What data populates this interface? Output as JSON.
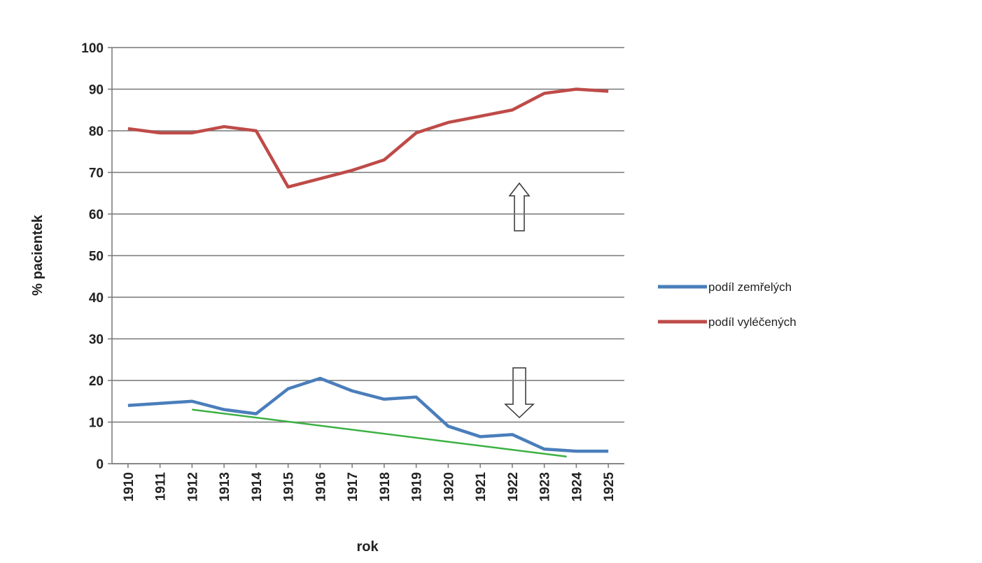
{
  "chart_data": {
    "type": "line",
    "y_label": "% pacientek",
    "x_label": "rok",
    "x": [
      1910,
      1911,
      1912,
      1913,
      1914,
      1915,
      1916,
      1917,
      1918,
      1919,
      1920,
      1921,
      1922,
      1923,
      1924,
      1925
    ],
    "xlim": [
      1909.5,
      1925.5
    ],
    "xticks": [
      1910,
      1911,
      1912,
      1913,
      1914,
      1915,
      1916,
      1917,
      1918,
      1919,
      1920,
      1921,
      1922,
      1923,
      1924,
      1925
    ],
    "ylim": [
      0,
      100
    ],
    "yticks": [
      0,
      10,
      20,
      30,
      40,
      50,
      60,
      70,
      80,
      90,
      100
    ],
    "grid": true,
    "legend": "right",
    "series": [
      {
        "name": "podíl zemřelých",
        "color": "#4a7ebb",
        "values": [
          14,
          14.5,
          15,
          13,
          12,
          18,
          20.5,
          17.5,
          15.5,
          16,
          9,
          6.5,
          7,
          3.5,
          3,
          3
        ]
      },
      {
        "name": "podíl vyléčených",
        "color": "#be4b48",
        "values": [
          80.5,
          79.5,
          79.5,
          81,
          80,
          66.5,
          68.5,
          70.5,
          73,
          79.5,
          82,
          83.5,
          85,
          89,
          90,
          89.5
        ]
      }
    ],
    "trendline": {
      "color": "#3cb043",
      "x": [
        1912,
        1923.7
      ],
      "values": [
        13,
        1.7
      ]
    }
  }
}
